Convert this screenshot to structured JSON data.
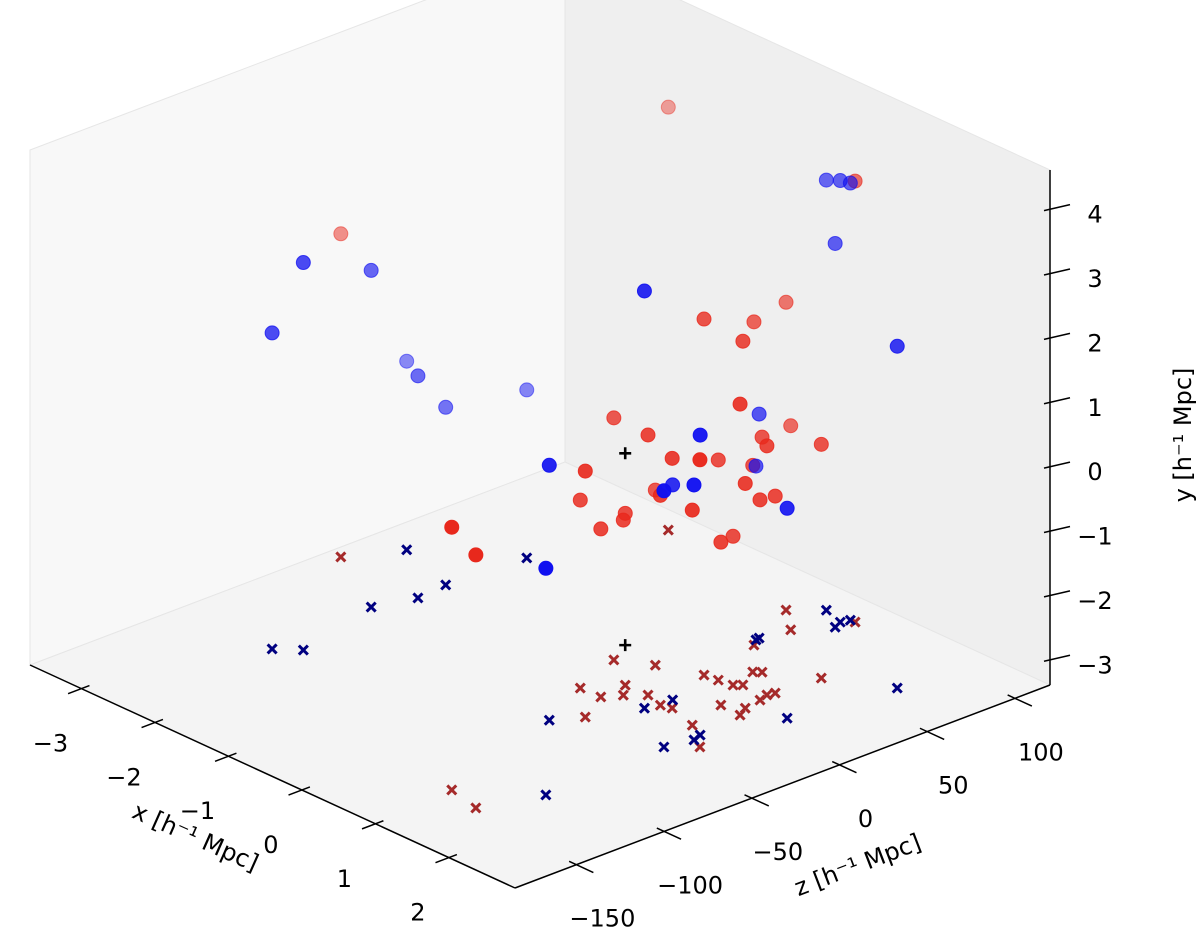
{
  "chart_data": {
    "type": "scatter3d",
    "xlabel": "x [h⁻¹ Mpc]",
    "ylabel": "y [h⁻¹ Mpc]",
    "zlabel": "z [h⁻¹ Mpc]",
    "xlim": [
      -3.7,
      2.9
    ],
    "ylim": [
      -3.4,
      4.6
    ],
    "zlim": [
      -185,
      120
    ],
    "xticks": [
      {
        "value": -3,
        "label": "−3"
      },
      {
        "value": -2,
        "label": "−2"
      },
      {
        "value": -1,
        "label": "−1"
      },
      0,
      1,
      2
    ],
    "yticks": [
      {
        "value": -3,
        "label": "−3"
      },
      {
        "value": -2,
        "label": "−2"
      },
      {
        "value": -1,
        "label": "−1"
      },
      0,
      1,
      2,
      3,
      4
    ],
    "zticks": [
      {
        "value": -150,
        "label": "−150"
      },
      {
        "value": -100,
        "label": "−100"
      },
      {
        "value": -50,
        "label": "−50"
      },
      0,
      50,
      100
    ],
    "series": [
      {
        "color": "#e8281c",
        "projection_color": "#a52a2a",
        "marker": "o",
        "x": [
          -1.96,
          0.68,
          -3.54,
          0.61,
          0.43,
          1.01,
          0.06,
          -0.19,
          0.59,
          1.48,
          0.92,
          1.32,
          0.41,
          1.38,
          0.56,
          0.95,
          1.75,
          0.78,
          1.4,
          0.86,
          1.34,
          1.36,
          0.15,
          0.83,
          0.06,
          0.29,
          0.44,
          0.33,
          1.35,
          1.2,
          0.95,
          0.92,
          1.36
        ],
        "y": [
          3.17,
          3.45,
          1.62,
          2.13,
          1.62,
          1.94,
          1.38,
          0.36,
          0.64,
          1.43,
          0.25,
          0.47,
          -0.23,
          0.23,
          0.42,
          0.48,
          1.06,
          0.02,
          0.09,
          -0.19,
          -0.34,
          -0.29,
          -0.68,
          -0.14,
          -0.48,
          -0.73,
          -0.68,
          -0.79,
          -0.06,
          -0.87,
          -1.09,
          0.68,
          0.53
        ],
        "z": [
          106,
          101.9,
          -14.5,
          18.7,
          54.7,
          24.1,
          88.5,
          0.8,
          -12.4,
          2.8,
          38.8,
          24.8,
          76.5,
          53.3,
          -46.9,
          -13.7,
          -31.4,
          19.7,
          9.1,
          36,
          28.7,
          19.2,
          10.2,
          -15.4,
          -28.8,
          -12.8,
          -20.2,
          -28.4,
          -19,
          3.6,
          21,
          -138.1,
          -142.8
        ]
      },
      {
        "color": "#1010f0",
        "projection_color": "#000080",
        "marker": "o",
        "x": [
          0.31,
          0.59,
          0.62,
          0.64,
          -2.26,
          -2.54,
          -2.47,
          0.78,
          2.01,
          -3.25,
          -2.4,
          -2.44,
          -2.38,
          0.35,
          1.56,
          0.36,
          0.39,
          0.82,
          1.6,
          1.53,
          1.82,
          1.58
        ],
        "y": [
          3.28,
          3.46,
          3.39,
          2.56,
          2.62,
          1.83,
          1.51,
          3.08,
          1.91,
          -0.47,
          0.05,
          -0.64,
          -0.79,
          0.08,
          1.26,
          -0.7,
          0.56,
          -0.06,
          0.56,
          0.58,
          -0.14,
          0.12
        ],
        "z": [
          101,
          97.2,
          101.7,
          92.2,
          -89.5,
          -39.1,
          -98.5,
          -22.4,
          70.2,
          10.9,
          -18.3,
          -0.8,
          42.9,
          61,
          -23.3,
          58.8,
          -60.3,
          -8,
          -28.5,
          -42.7,
          15.4,
          -112.1
        ]
      },
      {
        "color": "#000000",
        "projection_color": "#000000",
        "marker": "+",
        "x": [
          -0.36
        ],
        "y": [
          -0.42
        ],
        "z": [
          14.4
        ]
      }
    ]
  }
}
